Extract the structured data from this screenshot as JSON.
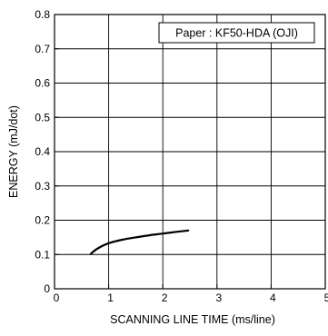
{
  "chart_data": {
    "type": "line",
    "title": "",
    "xlabel": "SCANNING  LINE  TIME (ms/line)",
    "ylabel": "ENERGY (mJ/dot)",
    "xlim": [
      0,
      5
    ],
    "ylim": [
      0,
      0.8
    ],
    "xticks": [
      "0",
      "1",
      "2",
      "3",
      "4",
      "5"
    ],
    "yticks": [
      "0",
      "0.1",
      "0.2",
      "0.3",
      "0.4",
      "0.5",
      "0.6",
      "0.7",
      "0.8"
    ],
    "grid": true,
    "annotation": "Paper : KF50-HDA (OJI)",
    "annotation_position": "top-right",
    "series": [
      {
        "x": [
          0.67,
          0.8,
          1.0,
          1.25,
          1.5,
          1.75,
          2.0,
          2.25,
          2.47
        ],
        "values": [
          0.102,
          0.118,
          0.133,
          0.143,
          0.15,
          0.156,
          0.161,
          0.166,
          0.17
        ],
        "color": "#000000"
      }
    ]
  }
}
